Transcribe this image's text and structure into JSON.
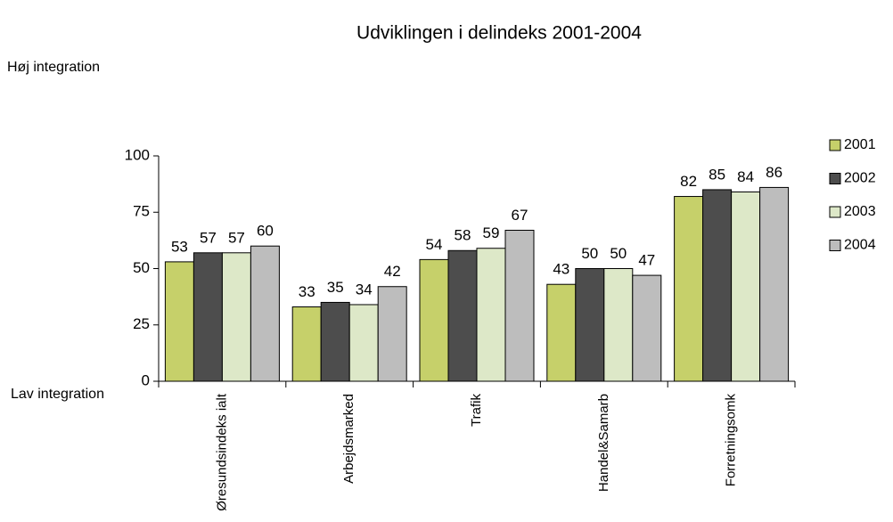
{
  "chart_data": {
    "type": "bar",
    "title": "Udviklingen i delindeks 2001-2004",
    "annotations": [
      "Høj integration",
      "Lav integration"
    ],
    "categories": [
      "Øresundsindeks ialt",
      "Arbejdsmarked",
      "Trafik",
      "Handel&Samarb",
      "Forretningsomk"
    ],
    "series": [
      {
        "name": "2001",
        "color": "#c6d06a",
        "values": [
          53,
          33,
          54,
          43,
          82
        ]
      },
      {
        "name": "2002",
        "color": "#4d4d4d",
        "values": [
          57,
          35,
          58,
          50,
          85
        ]
      },
      {
        "name": "2003",
        "color": "#dde8c8",
        "values": [
          57,
          34,
          59,
          50,
          84
        ]
      },
      {
        "name": "2004",
        "color": "#bdbdbd",
        "values": [
          60,
          42,
          67,
          47,
          86
        ]
      }
    ],
    "ylim": [
      0,
      100
    ],
    "yticks": [
      0,
      25,
      50,
      75,
      100
    ],
    "grid": false,
    "legend": "right"
  }
}
